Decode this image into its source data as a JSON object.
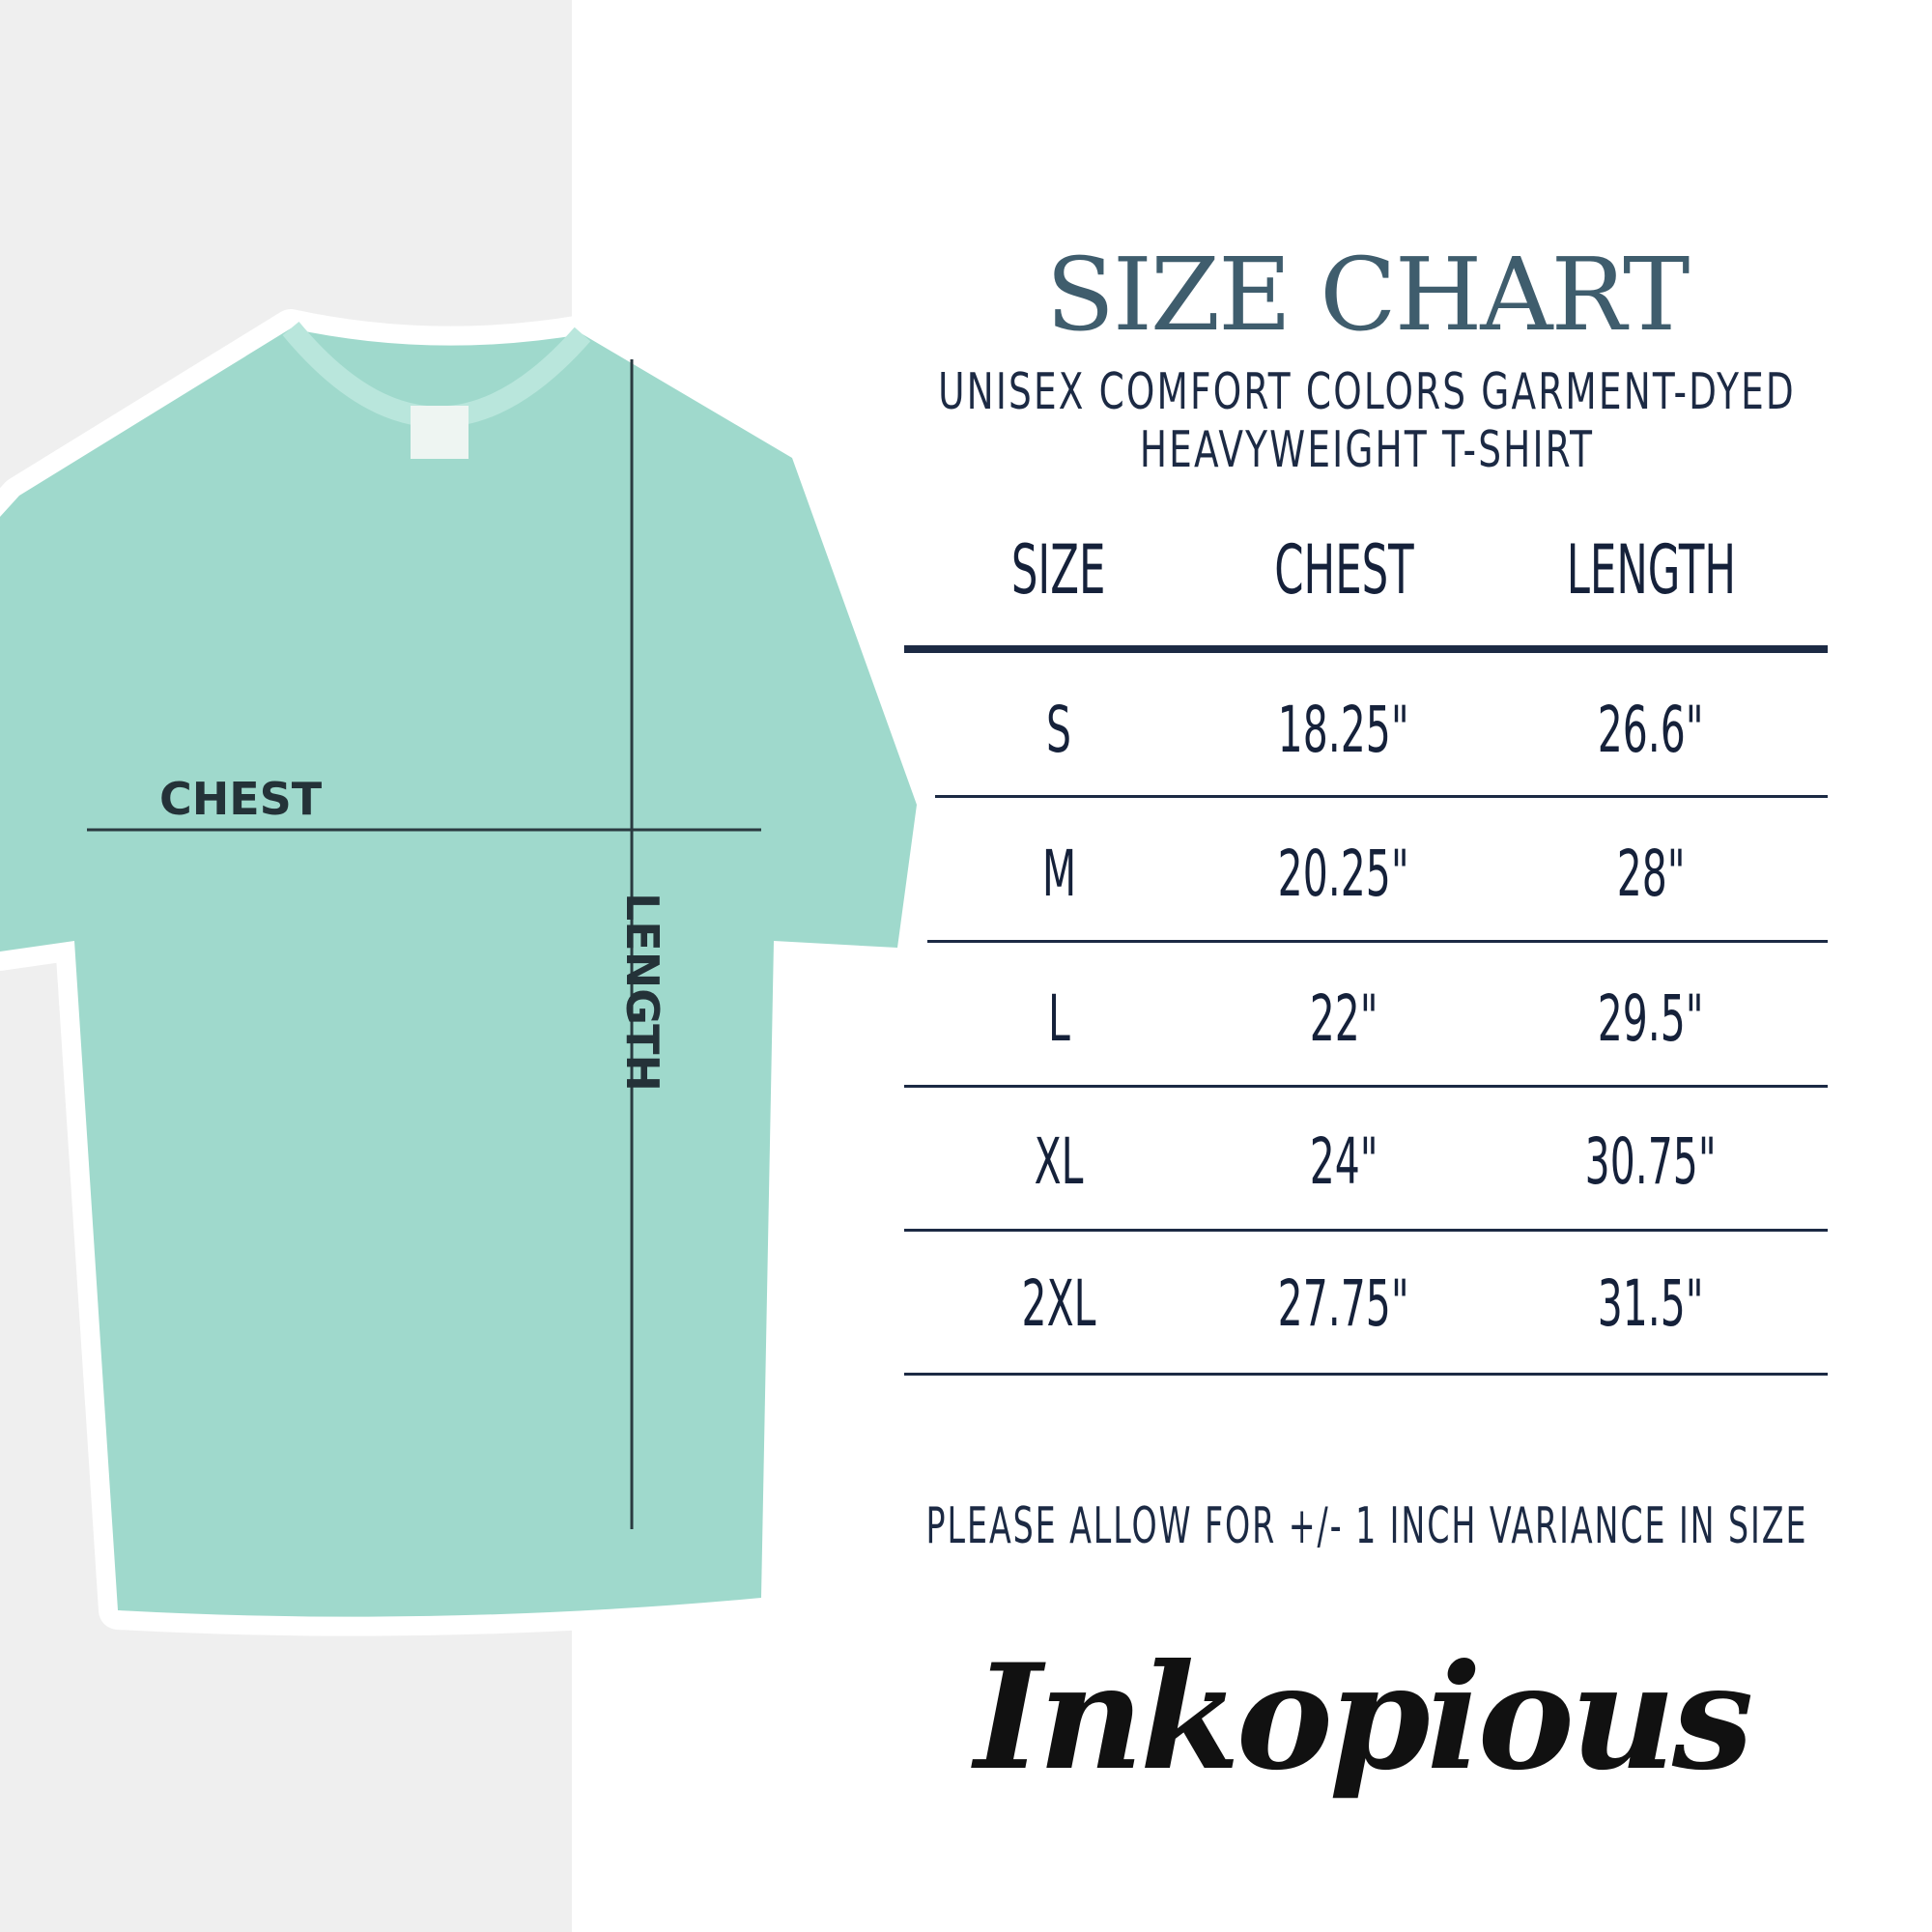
{
  "title": "SIZE CHART",
  "subtitle_lines": [
    "UNISEX COMFORT COLORS GARMENT-DYED",
    "HEAVYWEIGHT T-SHIRT"
  ],
  "table": {
    "headers": [
      "SIZE",
      "CHEST",
      "LENGTH"
    ],
    "rows": [
      [
        "S",
        "18.25\"",
        "26.6\""
      ],
      [
        "M",
        "20.25\"",
        "28\""
      ],
      [
        "L",
        "22\"",
        "29.5\""
      ],
      [
        "XL",
        "24\"",
        "30.75\""
      ],
      [
        "2XL",
        "27.75\"",
        "31.5\""
      ]
    ]
  },
  "note": "PLEASE ALLOW FOR +/- 1 INCH VARIANCE IN SIZE",
  "diagram": {
    "chest_label": "CHEST",
    "length_label": "LENGTH",
    "shirt_color": "#9fd9cc"
  },
  "logo": "Inkopious",
  "colors": {
    "title": "#3f5d6d",
    "text": "#1c2a44",
    "panel": "#efefef"
  }
}
